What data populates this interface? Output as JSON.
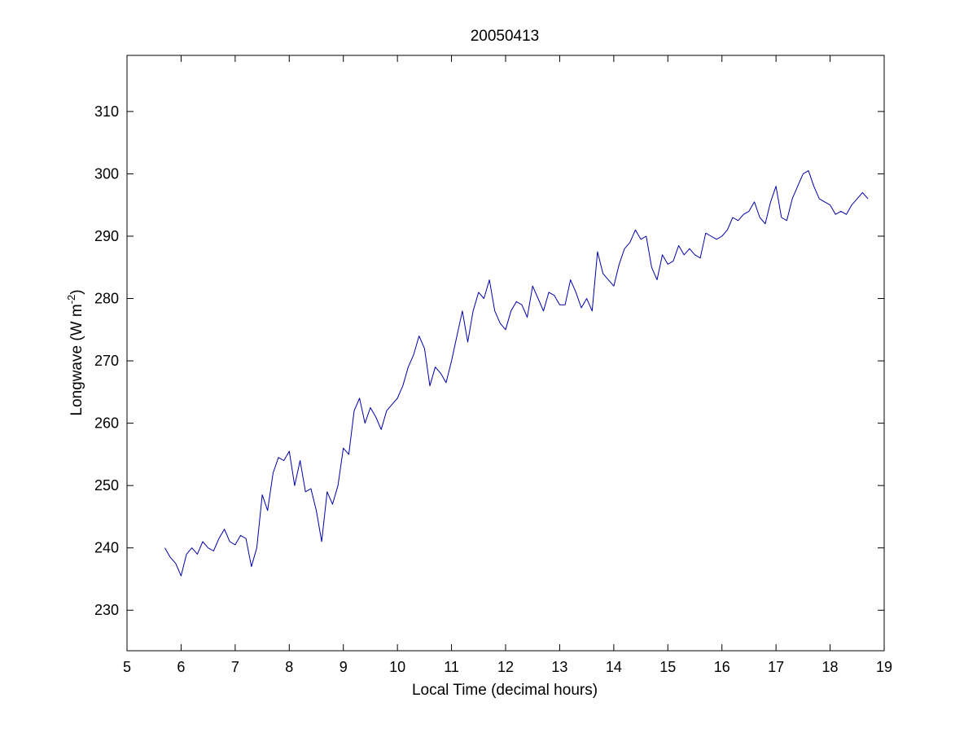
{
  "chart_data": {
    "type": "line",
    "title": "20050413",
    "xlabel": "Local Time (decimal hours)",
    "ylabel": "Longwave (W m",
    "ylabel_superscript": "-2",
    "ylabel_close": ")",
    "xlim": [
      5,
      19
    ],
    "ylim": [
      223.5,
      319
    ],
    "xticks": [
      5,
      6,
      7,
      8,
      9,
      10,
      11,
      12,
      13,
      14,
      15,
      16,
      17,
      18,
      19
    ],
    "yticks": [
      230,
      240,
      250,
      260,
      270,
      280,
      290,
      300,
      310
    ],
    "grid": false,
    "line_color": "#0000aa",
    "series": [
      {
        "x": [
          5.7,
          5.8,
          5.9,
          6.0,
          6.1,
          6.2,
          6.3,
          6.4,
          6.5,
          6.6,
          6.7,
          6.8,
          6.9,
          7.0,
          7.1,
          7.2,
          7.3,
          7.4,
          7.5,
          7.6,
          7.7,
          7.8,
          7.9,
          8.0,
          8.1,
          8.2,
          8.3,
          8.4,
          8.5,
          8.6,
          8.7,
          8.8,
          8.9,
          9.0,
          9.1,
          9.2,
          9.3,
          9.4,
          9.5,
          9.6,
          9.7,
          9.8,
          9.9,
          10.0,
          10.1,
          10.2,
          10.3,
          10.4,
          10.5,
          10.6,
          10.7,
          10.8,
          10.9,
          11.0,
          11.1,
          11.2,
          11.3,
          11.4,
          11.5,
          11.6,
          11.7,
          11.8,
          11.9,
          12.0,
          12.1,
          12.2,
          12.3,
          12.4,
          12.5,
          12.6,
          12.7,
          12.8,
          12.9,
          13.0,
          13.1,
          13.2,
          13.3,
          13.4,
          13.5,
          13.6,
          13.7,
          13.8,
          13.9,
          14.0,
          14.1,
          14.2,
          14.3,
          14.4,
          14.5,
          14.6,
          14.7,
          14.8,
          14.9,
          15.0,
          15.1,
          15.2,
          15.3,
          15.4,
          15.5,
          15.6,
          15.7,
          15.8,
          15.9,
          16.0,
          16.1,
          16.2,
          16.3,
          16.4,
          16.5,
          16.6,
          16.7,
          16.8,
          16.9,
          17.0,
          17.1,
          17.2,
          17.3,
          17.4,
          17.5,
          17.6,
          17.7,
          17.8,
          17.9,
          18.0,
          18.1,
          18.2,
          18.3,
          18.4,
          18.5,
          18.6,
          18.7
        ],
        "y": [
          240.0,
          238.5,
          237.5,
          235.5,
          239.0,
          240.0,
          239.0,
          241.0,
          240.0,
          239.5,
          241.5,
          243.0,
          241.0,
          240.5,
          242.0,
          241.5,
          237.0,
          240.0,
          248.5,
          246.0,
          252.0,
          254.5,
          254.0,
          255.5,
          250.0,
          254.0,
          249.0,
          249.5,
          246.0,
          241.0,
          249.0,
          247.0,
          250.0,
          256.0,
          255.0,
          262.0,
          264.0,
          260.0,
          262.5,
          261.0,
          259.0,
          262.0,
          263.0,
          264.0,
          266.0,
          269.0,
          271.0,
          274.0,
          272.0,
          266.0,
          269.0,
          268.0,
          266.5,
          270.0,
          274.0,
          278.0,
          273.0,
          278.0,
          281.0,
          280.0,
          283.0,
          278.0,
          276.0,
          275.0,
          278.0,
          279.5,
          279.0,
          277.0,
          282.0,
          280.0,
          278.0,
          281.0,
          280.5,
          279.0,
          279.0,
          283.0,
          281.0,
          278.5,
          280.0,
          278.0,
          287.5,
          284.0,
          283.0,
          282.0,
          285.5,
          288.0,
          289.0,
          291.0,
          289.5,
          290.0,
          285.0,
          283.0,
          287.0,
          285.5,
          286.0,
          288.5,
          287.0,
          288.0,
          287.0,
          286.5,
          290.5,
          290.0,
          289.5,
          290.0,
          291.0,
          293.0,
          292.5,
          293.5,
          294.0,
          295.5,
          293.0,
          292.0,
          295.5,
          298.0,
          293.0,
          292.5,
          296.0,
          298.0,
          300.0,
          300.5,
          298.0,
          296.0,
          295.5,
          295.0,
          293.5,
          294.0,
          293.5,
          295.0,
          296.0,
          297.0,
          296.0
        ]
      }
    ]
  }
}
